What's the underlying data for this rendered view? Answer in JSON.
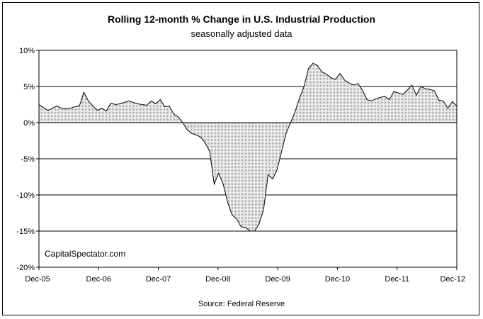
{
  "chart_data": {
    "type": "area",
    "title": "Rolling 12-month %  Change in U.S. Industrial Production",
    "subtitle": "seasonally adjusted data",
    "watermark": "CapitalSpectator.com",
    "source": "Source: Federal Reserve",
    "xlabel": "",
    "ylabel": "",
    "x_tick_labels": [
      "Dec-05",
      "Dec-06",
      "Dec-07",
      "Dec-08",
      "Dec-09",
      "Dec-10",
      "Dec-11",
      "Dec-12"
    ],
    "y_tick_labels": [
      "10%",
      "5%",
      "0%",
      "-5%",
      "-10%",
      "-15%",
      "-20%"
    ],
    "y_tick_values": [
      10,
      5,
      0,
      -5,
      -10,
      -15,
      -20
    ],
    "ylim": [
      -20,
      10
    ],
    "x_start": "Dec-05",
    "x_end": "Dec-12",
    "grid": "horizontal",
    "legend": "none",
    "fill_pattern": "light gray dotted",
    "series": [
      {
        "values": [
          2.5,
          2.1,
          1.7,
          2.0,
          2.3,
          2.0,
          1.9,
          2.0,
          2.2,
          2.3,
          4.2,
          3.0,
          2.3,
          1.7,
          2.0,
          1.6,
          2.7,
          2.5,
          2.6,
          2.8,
          3.0,
          2.8,
          2.6,
          2.5,
          2.4,
          3.0,
          2.6,
          3.2,
          2.2,
          2.3,
          1.2,
          0.8,
          0.0,
          -1.0,
          -1.5,
          -1.7,
          -2.0,
          -2.8,
          -4.0,
          -8.5,
          -7.0,
          -8.5,
          -11.0,
          -12.8,
          -13.3,
          -14.4,
          -14.5,
          -15.0,
          -15.0,
          -14.0,
          -12.0,
          -7.2,
          -7.8,
          -6.5,
          -4.0,
          -1.5,
          0.0,
          1.5,
          3.4,
          5.0,
          7.5,
          8.2,
          7.9,
          7.0,
          6.7,
          6.2,
          6.0,
          6.8,
          5.9,
          5.5,
          5.2,
          5.4,
          4.5,
          3.2,
          3.0,
          3.3,
          3.5,
          3.6,
          3.2,
          4.3,
          4.1,
          3.9,
          4.5,
          5.2,
          3.8,
          5.0,
          4.7,
          4.6,
          4.4,
          3.1,
          3.0,
          2.0,
          2.9,
          2.3
        ]
      }
    ]
  }
}
